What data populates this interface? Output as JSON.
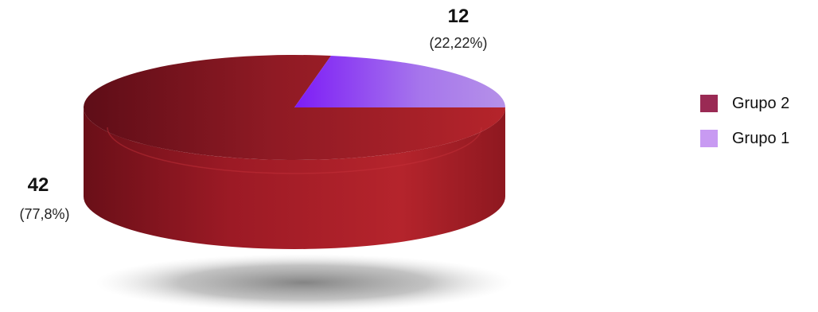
{
  "chart_data": {
    "type": "pie",
    "style": "3d",
    "slices": [
      {
        "name": "Grupo 2",
        "value": 42,
        "label_value": "42",
        "label_pct": "(77,8%)",
        "color": "#9b1b26",
        "legend_color": "#9a2a54"
      },
      {
        "name": "Grupo 1",
        "value": 12,
        "label_value": "12",
        "label_pct": "(22,22%)",
        "color": "#9a5cf0",
        "legend_color": "#c89af2"
      }
    ],
    "legend": {
      "position": "right",
      "order": [
        "Grupo 2",
        "Grupo 1"
      ]
    }
  }
}
